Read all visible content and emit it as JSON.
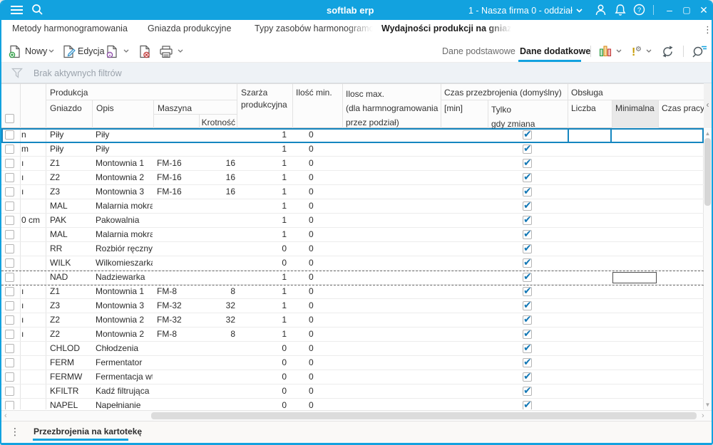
{
  "accent": "#12a2df",
  "window": {
    "title": "softlab erp",
    "company_selector": "1 - Nasza firma 0 - oddział"
  },
  "tabs": [
    {
      "label": "Metody harmonogramowania",
      "active": false
    },
    {
      "label": "Gniazda produkcyjne",
      "active": false
    },
    {
      "label": "Typy zasobów harmonogramowanych",
      "active": false
    },
    {
      "label": "Wydajności produkcji na gniazdach",
      "active": true
    }
  ],
  "toolbar": {
    "new_label": "Nowy",
    "edit_label": "Edycja",
    "view_tabs": [
      {
        "label": "Dane podstawowe",
        "active": false
      },
      {
        "label": "Dane dodatkowe",
        "active": true
      }
    ]
  },
  "filter_bar": {
    "text": "Brak aktywnych filtrów"
  },
  "grid": {
    "header": {
      "produkcja": "Produkcja",
      "gniazdo": "Gniazdo",
      "opis": "Opis",
      "maszyna": "Maszyna",
      "krotnosc": "Krotność",
      "szarza_1": "Szarża",
      "szarza_2": "produkcyjna",
      "ilosc_min": "Ilość min.",
      "ilosc_max_1": "Ilosc max.",
      "ilosc_max_2": "(dla harmnogramowania",
      "ilosc_max_3": "przez podział)",
      "czas_przezbrojenia": "Czas przezbrojenia (domyślny)",
      "min": "[min]",
      "tylko_1": "Tylko",
      "tylko_2": "gdy zmiana",
      "obsluga": "Obsługa",
      "liczba": "Liczba",
      "minimalna": "Minimalna",
      "czas_pracy": "Czas pracy"
    },
    "rows": [
      {
        "clip": "n",
        "gniazdo": "Piły",
        "opis": "Piły",
        "maszyna": "",
        "krotnosc": "",
        "szarza": "1",
        "ilosc_min": "0",
        "tylko_gdy_zmiana": true,
        "selected": true
      },
      {
        "clip": "m",
        "gniazdo": "Piły",
        "opis": "Piły",
        "maszyna": "",
        "krotnosc": "",
        "szarza": "1",
        "ilosc_min": "0",
        "tylko_gdy_zmiana": true
      },
      {
        "clip": "ı",
        "gniazdo": "Z1",
        "opis": "Montownia 1",
        "maszyna": "FM-16",
        "krotnosc": "16",
        "szarza": "1",
        "ilosc_min": "0",
        "tylko_gdy_zmiana": true
      },
      {
        "clip": "ı",
        "gniazdo": "Z2",
        "opis": "Montownia 2",
        "maszyna": "FM-16",
        "krotnosc": "16",
        "szarza": "1",
        "ilosc_min": "0",
        "tylko_gdy_zmiana": true
      },
      {
        "clip": "ı",
        "gniazdo": "Z3",
        "opis": "Montownia 3",
        "maszyna": "FM-16",
        "krotnosc": "16",
        "szarza": "1",
        "ilosc_min": "0",
        "tylko_gdy_zmiana": true
      },
      {
        "clip": "",
        "gniazdo": "MAL",
        "opis": "Malarnia mokra",
        "maszyna": "",
        "krotnosc": "",
        "szarza": "1",
        "ilosc_min": "0",
        "tylko_gdy_zmiana": true
      },
      {
        "clip": "0 cm (",
        "gniazdo": "PAK",
        "opis": "Pakowalnia",
        "maszyna": "",
        "krotnosc": "",
        "szarza": "1",
        "ilosc_min": "0",
        "tylko_gdy_zmiana": true
      },
      {
        "clip": "",
        "gniazdo": "MAL",
        "opis": "Malarnia mokra",
        "maszyna": "",
        "krotnosc": "",
        "szarza": "1",
        "ilosc_min": "0",
        "tylko_gdy_zmiana": true
      },
      {
        "clip": "",
        "gniazdo": "RR",
        "opis": "Rozbiór ręczny",
        "maszyna": "",
        "krotnosc": "",
        "szarza": "0",
        "ilosc_min": "0",
        "tylko_gdy_zmiana": true
      },
      {
        "clip": "",
        "gniazdo": "WILK",
        "opis": "Wilkomieszarka",
        "maszyna": "",
        "krotnosc": "",
        "szarza": "0",
        "ilosc_min": "0",
        "tylko_gdy_zmiana": true
      },
      {
        "clip": "",
        "gniazdo": "NAD",
        "opis": "Nadziewarka",
        "maszyna": "",
        "krotnosc": "",
        "szarza": "1",
        "ilosc_min": "0",
        "tylko_gdy_zmiana": true,
        "focused": true,
        "edit_box_value": ""
      },
      {
        "clip": "ı",
        "gniazdo": "Z1",
        "opis": "Montownia 1",
        "maszyna": "FM-8",
        "krotnosc": "8",
        "szarza": "1",
        "ilosc_min": "0",
        "tylko_gdy_zmiana": true
      },
      {
        "clip": "ı",
        "gniazdo": "Z3",
        "opis": "Montownia 3",
        "maszyna": "FM-32",
        "krotnosc": "32",
        "szarza": "1",
        "ilosc_min": "0",
        "tylko_gdy_zmiana": true
      },
      {
        "clip": "ı",
        "gniazdo": "Z2",
        "opis": "Montownia 2",
        "maszyna": "FM-32",
        "krotnosc": "32",
        "szarza": "1",
        "ilosc_min": "0",
        "tylko_gdy_zmiana": true
      },
      {
        "clip": "ı",
        "gniazdo": "Z2",
        "opis": "Montownia 2",
        "maszyna": "FM-8",
        "krotnosc": "8",
        "szarza": "1",
        "ilosc_min": "0",
        "tylko_gdy_zmiana": true
      },
      {
        "clip": "",
        "gniazdo": "CHLOD",
        "opis": "Chłodzenia",
        "maszyna": "",
        "krotnosc": "",
        "szarza": "0",
        "ilosc_min": "0",
        "tylko_gdy_zmiana": true
      },
      {
        "clip": "",
        "gniazdo": "FERM",
        "opis": "Fermentator",
        "maszyna": "",
        "krotnosc": "",
        "szarza": "0",
        "ilosc_min": "0",
        "tylko_gdy_zmiana": true
      },
      {
        "clip": "",
        "gniazdo": "FERMW",
        "opis": "Fermentacja wt",
        "maszyna": "",
        "krotnosc": "",
        "szarza": "0",
        "ilosc_min": "0",
        "tylko_gdy_zmiana": true
      },
      {
        "clip": "",
        "gniazdo": "KFILTR",
        "opis": "Kadź filtrująca",
        "maszyna": "",
        "krotnosc": "",
        "szarza": "0",
        "ilosc_min": "0",
        "tylko_gdy_zmiana": true
      },
      {
        "clip": "",
        "gniazdo": "NAPEL",
        "opis": "Napełnianie",
        "maszyna": "",
        "krotnosc": "",
        "szarza": "0",
        "ilosc_min": "0",
        "tylko_gdy_zmiana": true
      }
    ]
  },
  "bottom_bar": {
    "tab": "Przezbrojenia na kartotekę"
  }
}
